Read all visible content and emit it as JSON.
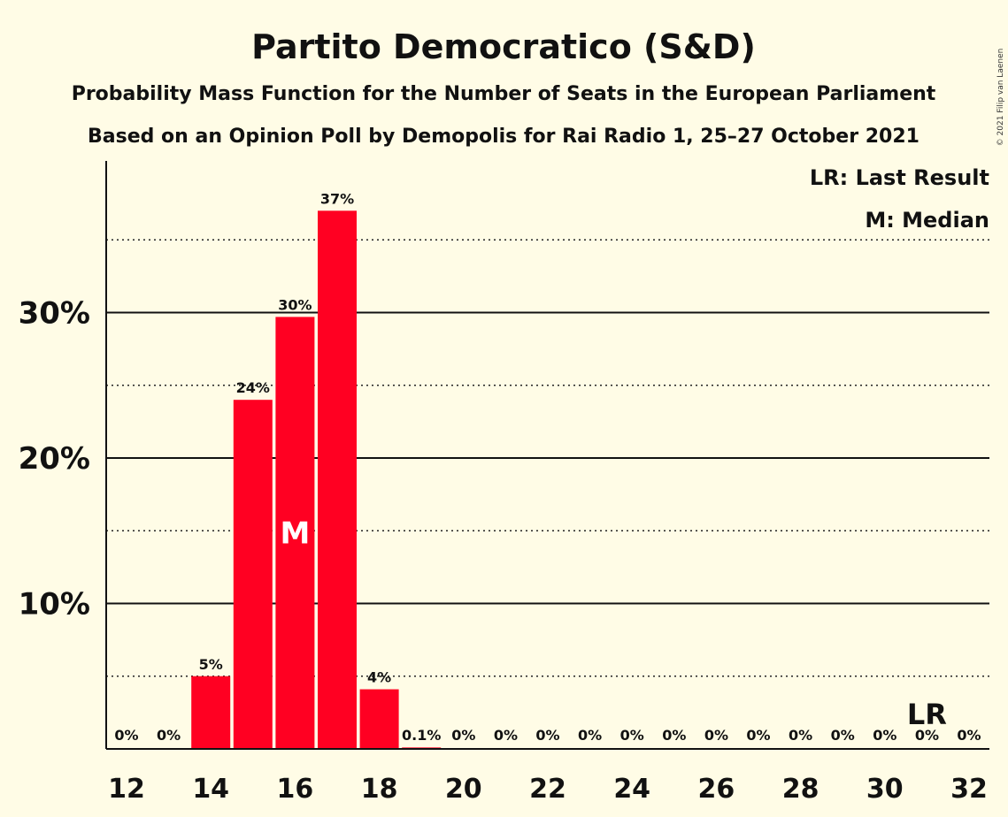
{
  "colors": {
    "background": "#fffce6",
    "bar": "#ff0022",
    "text": "#111111"
  },
  "copyright": "© 2021 Filip van Laenen",
  "legend": {
    "last_result": "LR: Last Result",
    "median": "M: Median"
  },
  "chart_data": {
    "type": "bar",
    "title": "Partito Democratico (S&D)",
    "subtitle_1": "Probability Mass Function for the Number of Seats in the European Parliament",
    "subtitle_2": "Based on an Opinion Poll by Demopolis for Rai Radio 1, 25–27 October 2021",
    "xlabel": "",
    "ylabel": "",
    "ylim": [
      0,
      40
    ],
    "x": [
      12,
      13,
      14,
      15,
      16,
      17,
      18,
      19,
      20,
      21,
      22,
      23,
      24,
      25,
      26,
      27,
      28,
      29,
      30,
      31,
      32
    ],
    "values": [
      0,
      0,
      5,
      24,
      29.7,
      37,
      4.1,
      0.1,
      0,
      0,
      0,
      0,
      0,
      0,
      0,
      0,
      0,
      0,
      0,
      0,
      0
    ],
    "value_labels": [
      "0%",
      "0%",
      "5%",
      "24%",
      "30%",
      "37%",
      "4%",
      "0.1%",
      "0%",
      "0%",
      "0%",
      "0%",
      "0%",
      "0%",
      "0%",
      "0%",
      "0%",
      "0%",
      "0%",
      "0%",
      "0%"
    ],
    "x_ticks": [
      12,
      14,
      16,
      18,
      20,
      22,
      24,
      26,
      28,
      30,
      32
    ],
    "y_ticks_major": [
      10,
      20,
      30
    ],
    "y_tick_labels": [
      "10%",
      "20%",
      "30%"
    ],
    "y_gridlines_dotted": [
      5,
      15,
      25,
      35
    ],
    "median_seat": 16,
    "median_marker": "M",
    "last_result_seat": 31,
    "last_result_marker": "LR",
    "grid": true,
    "legend_position": "top-right"
  }
}
